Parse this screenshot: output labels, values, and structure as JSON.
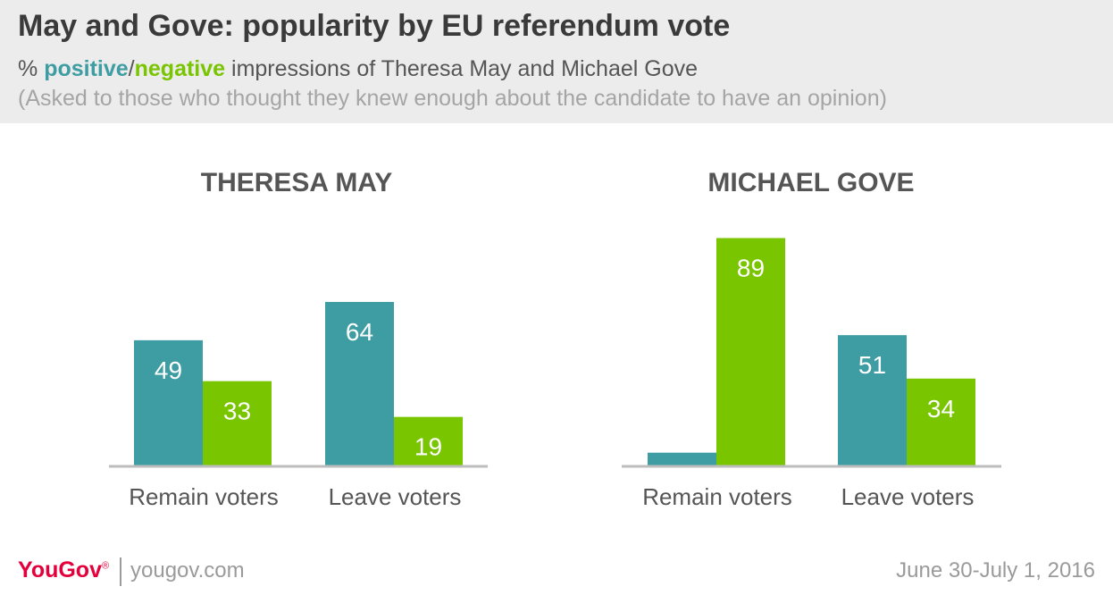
{
  "header": {
    "title": "May and Gove: popularity by EU referendum vote",
    "subtitle_prefix": "% ",
    "subtitle_positive": "positive",
    "subtitle_slash": "/",
    "subtitle_negative": "negative",
    "subtitle_suffix": " impressions of Theresa May and Michael Gove",
    "note": "(Asked to those who thought they knew enough about the candidate to have an opinion)"
  },
  "colors": {
    "positive": "#3e9da2",
    "negative": "#78c500",
    "header_bg": "#ececec",
    "axis": "#bdbdbd",
    "brand": "#e4003b"
  },
  "chart_data": [
    {
      "type": "bar",
      "title": "THERESA MAY",
      "categories": [
        "Remain voters",
        "Leave voters"
      ],
      "series": [
        {
          "name": "positive",
          "values": [
            49,
            64
          ]
        },
        {
          "name": "negative",
          "values": [
            33,
            19
          ]
        }
      ],
      "ylim": [
        0,
        100
      ]
    },
    {
      "type": "bar",
      "title": "MICHAEL GOVE",
      "categories": [
        "Remain voters",
        "Leave voters"
      ],
      "series": [
        {
          "name": "positive",
          "values": [
            5,
            51
          ]
        },
        {
          "name": "negative",
          "values": [
            89,
            34
          ]
        }
      ],
      "value_labels": [
        [
          "",
          "51"
        ],
        [
          "89",
          "34"
        ]
      ],
      "ylim": [
        0,
        100
      ]
    }
  ],
  "footer": {
    "brand": "YouGov",
    "brand_mark": "®",
    "site": "yougov.com",
    "date": "June 30-July 1, 2016"
  }
}
